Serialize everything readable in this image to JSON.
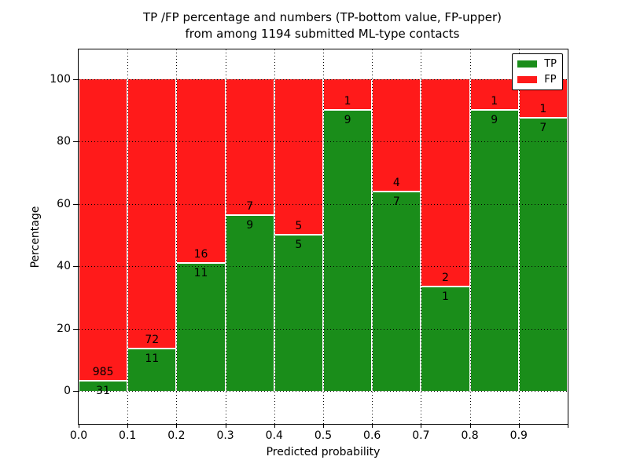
{
  "chart_data": {
    "type": "bar",
    "variant": "stacked-percentage-histogram",
    "title_line1": "TP /FP percentage and numbers (TP-bottom value, FP-upper)",
    "title_line2": "from among 1194 submitted ML-type contacts",
    "xlabel": "Predicted probability",
    "ylabel": "Percentage",
    "total_contacts": 1194,
    "x_tick_labels": [
      "0.0",
      "0.1",
      "0.2",
      "0.3",
      "0.4",
      "0.5",
      "0.6",
      "0.7",
      "0.8",
      "0.9"
    ],
    "y_tick_values": [
      0,
      20,
      40,
      60,
      80,
      100
    ],
    "xlim": [
      0,
      1.0
    ],
    "ylim": [
      -10.6,
      109.6
    ],
    "grid": true,
    "grid_style": "dotted",
    "bar_edge_color": "#ffffff",
    "colors": {
      "tp": "#1a8d1a",
      "fp": "#ff1a1a"
    },
    "legend": {
      "position": "upper-right",
      "entries": [
        {
          "label": "TP",
          "color": "#1a8d1a"
        },
        {
          "label": "FP",
          "color": "#ff1a1a"
        }
      ]
    },
    "categories": [
      "0.0-0.1",
      "0.1-0.2",
      "0.2-0.3",
      "0.3-0.4",
      "0.4-0.5",
      "0.5-0.6",
      "0.6-0.7",
      "0.7-0.8",
      "0.8-0.9",
      "0.9-1.0"
    ],
    "series": [
      {
        "name": "TP",
        "counts": [
          31,
          11,
          11,
          9,
          5,
          9,
          7,
          1,
          9,
          7
        ],
        "pct": [
          3.05,
          13.25,
          40.74,
          56.25,
          50.0,
          90.0,
          63.64,
          33.33,
          90.0,
          87.5
        ]
      },
      {
        "name": "FP",
        "counts": [
          985,
          72,
          16,
          7,
          5,
          1,
          4,
          2,
          1,
          1
        ],
        "pct": [
          96.95,
          86.75,
          59.26,
          43.75,
          50.0,
          10.0,
          36.36,
          66.67,
          10.0,
          12.5
        ]
      }
    ]
  }
}
